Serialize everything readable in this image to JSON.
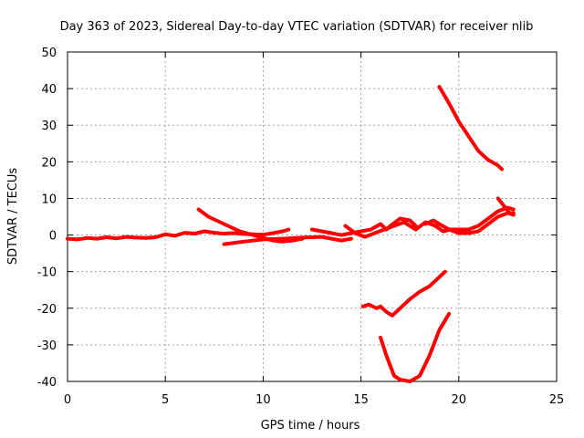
{
  "chart_data": {
    "type": "line",
    "title": "Day 363 of 2023, Sidereal Day-to-day VTEC variation (SDTVAR) for receiver nlib",
    "xlabel": "GPS time / hours",
    "ylabel": "SDTVAR / TECUs",
    "xlim": [
      0,
      25
    ],
    "ylim": [
      -40,
      50
    ],
    "xticks": [
      "0",
      "5",
      "10",
      "15",
      "20",
      "25"
    ],
    "yticks": [
      "50",
      "40",
      "30",
      "20",
      "10",
      "0",
      "-10",
      "-20",
      "-30",
      "-40"
    ],
    "grid": true,
    "color": "#ff0000",
    "series": [
      {
        "x": [
          0,
          0.5,
          1,
          1.5,
          2,
          2.5,
          3,
          3.5,
          4,
          4.5,
          5,
          5.5,
          6,
          6.5,
          7,
          7.5,
          8,
          8.5,
          9,
          9.5,
          10,
          10.5,
          11,
          11.3
        ],
        "y": [
          -1,
          -1.2,
          -0.8,
          -1,
          -0.6,
          -0.9,
          -0.5,
          -0.7,
          -0.8,
          -0.6,
          0.2,
          -0.2,
          0.6,
          0.4,
          1.0,
          0.6,
          0.4,
          0.5,
          0.3,
          0.2,
          0.1,
          0.5,
          1.0,
          1.5
        ]
      },
      {
        "x": [
          6.7,
          7.2,
          8,
          8.8,
          9.5,
          10,
          10.5,
          11,
          11.5,
          12
        ],
        "y": [
          7,
          5,
          3,
          1,
          0,
          -0.8,
          -1.5,
          -1.8,
          -1.5,
          -1.0
        ]
      },
      {
        "x": [
          8,
          9,
          10,
          11,
          12,
          13,
          13.5,
          14,
          14.5
        ],
        "y": [
          -2.5,
          -1.8,
          -1.2,
          -1.0,
          -0.7,
          -0.5,
          -1.0,
          -1.5,
          -1.0
        ]
      },
      {
        "x": [
          12.5,
          13,
          13.5,
          14,
          14.5,
          15,
          15.5,
          16,
          16.3,
          16.5,
          17,
          17.5,
          17.8
        ],
        "y": [
          1.5,
          1.0,
          0.5,
          0,
          0.5,
          1.0,
          1.5,
          3,
          1.5,
          2.5,
          4.5,
          4.0,
          2.5
        ]
      },
      {
        "x": [
          14.2,
          14.7,
          15.2,
          15.7,
          16.2,
          16.7,
          17.2,
          17.8,
          18.3,
          18.8,
          19.2,
          19.6,
          20,
          20.5,
          21,
          21.5,
          22,
          22.5,
          22.8
        ],
        "y": [
          2.5,
          0.5,
          -0.5,
          0.5,
          1.5,
          2.5,
          3.5,
          1.5,
          3.5,
          2.5,
          1.0,
          1.5,
          1.5,
          1.5,
          2.5,
          4.5,
          6.5,
          7.5,
          7.0
        ]
      },
      {
        "x": [
          18.3,
          18.7,
          19,
          19.5,
          20,
          20.5,
          21,
          21.5,
          22,
          22.5,
          22.8
        ],
        "y": [
          3.0,
          4.0,
          3.0,
          1.5,
          0.5,
          0.5,
          1.0,
          3.0,
          5.0,
          6.0,
          5.5
        ]
      },
      {
        "x": [
          22,
          22.3,
          22.6,
          22.8
        ],
        "y": [
          10,
          8,
          6,
          6
        ]
      },
      {
        "x": [
          19,
          19.5,
          20,
          20.5,
          21,
          21.5,
          22,
          22.2
        ],
        "y": [
          40.5,
          36,
          31,
          27,
          23,
          20.5,
          19,
          18
        ]
      },
      {
        "x": [
          15.1,
          15.4,
          15.8,
          16,
          16.3,
          16.6,
          17,
          17.5,
          18,
          18.5,
          19,
          19.3
        ],
        "y": [
          -19.5,
          -19.0,
          -20.0,
          -19.5,
          -21.0,
          -22.0,
          -20.0,
          -17.5,
          -15.5,
          -14.0,
          -11.5,
          -10.0
        ]
      },
      {
        "x": [
          16,
          16.3,
          16.7,
          17,
          17.5,
          18,
          18.5,
          19,
          19.5
        ],
        "y": [
          -28,
          -33,
          -38.5,
          -39.5,
          -40,
          -38.5,
          -33,
          -26,
          -21.5
        ]
      }
    ]
  }
}
